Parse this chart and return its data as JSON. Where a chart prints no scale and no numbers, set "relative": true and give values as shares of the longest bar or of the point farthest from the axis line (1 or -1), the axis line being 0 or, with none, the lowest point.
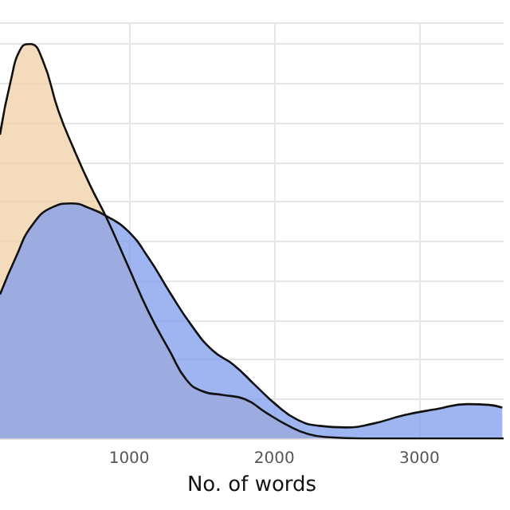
{
  "chart_data": {
    "type": "area",
    "xlabel": "No. of words",
    "relative": true,
    "xlim": [
      110,
      3580
    ],
    "xticks": [
      1000,
      2000,
      3000
    ],
    "grid": true,
    "marker": "none",
    "line_style": "solid",
    "series": [
      {
        "color": "#f0cfa6",
        "x": [
          110,
          183,
          256,
          319,
          403,
          513,
          623,
          733,
          843,
          989,
          1135,
          1282,
          1392,
          1502,
          1648,
          1795,
          1941,
          2088,
          2234,
          2381,
          2600,
          3000,
          3580
        ],
        "values": [
          0.77,
          0.905,
          0.99,
          1.0,
          0.96,
          0.83,
          0.73,
          0.64,
          0.56,
          0.44,
          0.32,
          0.22,
          0.15,
          0.12,
          0.11,
          0.1,
          0.066,
          0.034,
          0.011,
          0.003,
          0,
          0,
          0
        ]
      },
      {
        "color": "#7f9cec",
        "x": [
          110,
          220,
          330,
          476,
          604,
          733,
          843,
          989,
          1135,
          1282,
          1429,
          1575,
          1722,
          1868,
          2014,
          2161,
          2308,
          2491,
          2674,
          2894,
          3114,
          3333,
          3480,
          3571
        ],
        "values": [
          0.365,
          0.46,
          0.54,
          0.587,
          0.596,
          0.583,
          0.564,
          0.527,
          0.457,
          0.369,
          0.287,
          0.223,
          0.186,
          0.135,
          0.085,
          0.047,
          0.032,
          0.028,
          0.037,
          0.059,
          0.074,
          0.087,
          0.085,
          0.078
        ]
      }
    ]
  }
}
